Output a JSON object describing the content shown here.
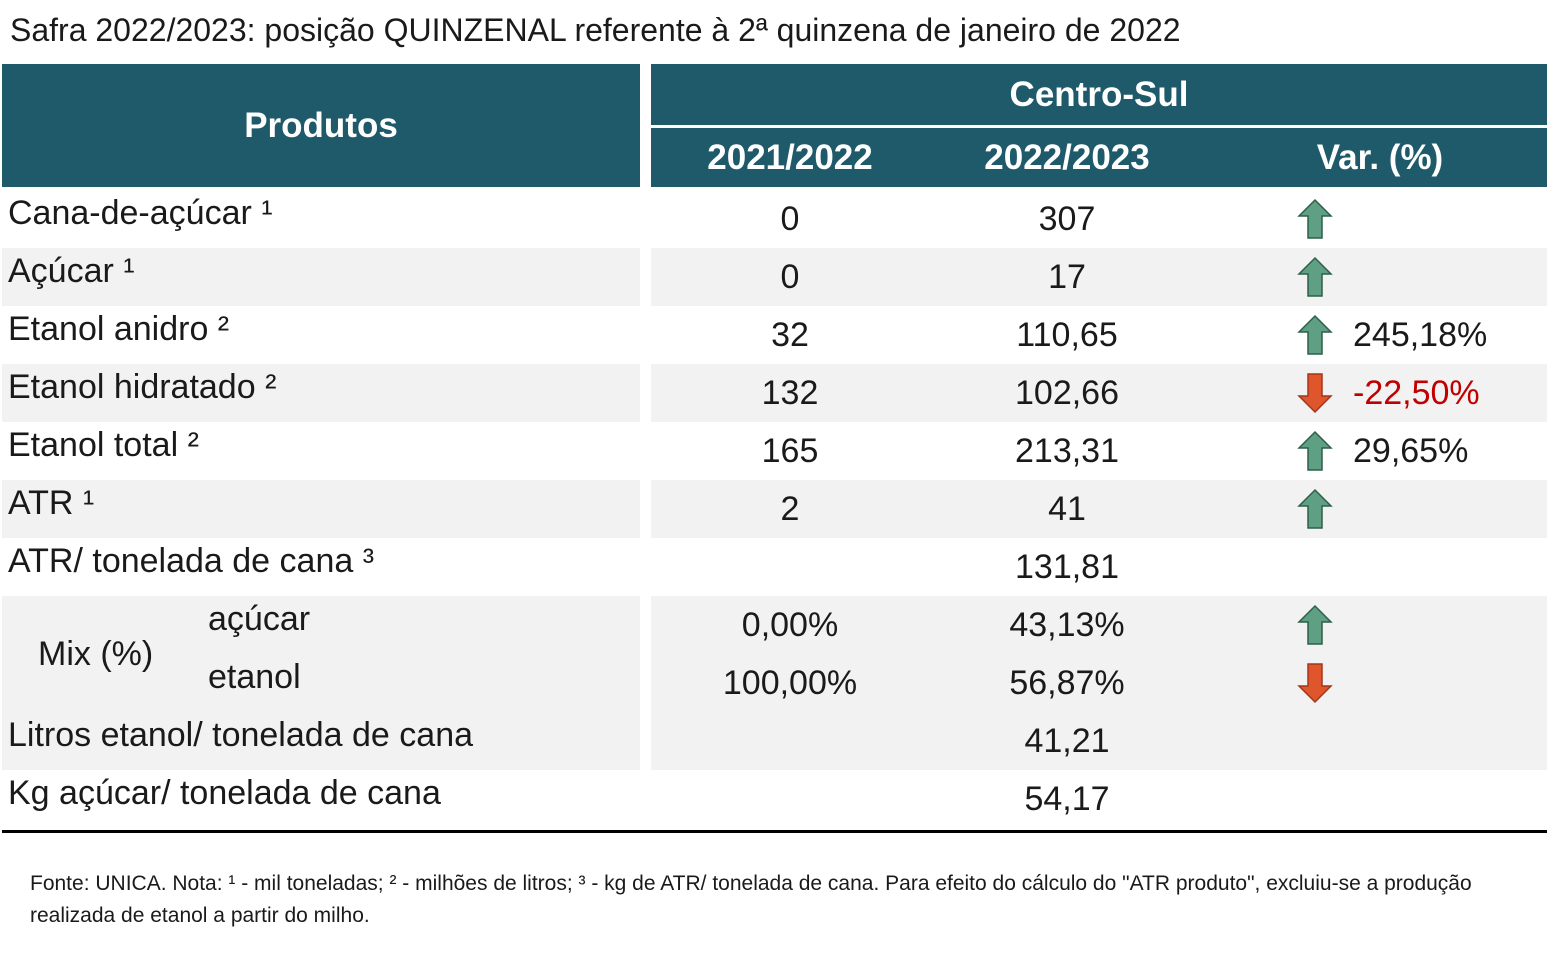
{
  "title": "Safra 2022/2023: posição QUINZENAL referente à 2ª quinzena de janeiro de 2022",
  "header": {
    "products": "Produtos",
    "region": "Centro-Sul",
    "columns": [
      "2021/2022",
      "2022/2023",
      "Var. (%)"
    ]
  },
  "rows": [
    {
      "name": "Cana-de-açúcar ¹",
      "c1": "0",
      "c2": "307",
      "arrow": "up",
      "var": null
    },
    {
      "name": "Açúcar ¹",
      "c1": "0",
      "c2": "17",
      "arrow": "up",
      "var": null
    },
    {
      "name": "Etanol anidro ²",
      "c1": "32",
      "c2": "110,65",
      "arrow": "up",
      "var": "245,18%"
    },
    {
      "name": "Etanol hidratado ²",
      "c1": "132",
      "c2": "102,66",
      "arrow": "down",
      "var": "-22,50%"
    },
    {
      "name": "Etanol total ²",
      "c1": "165",
      "c2": "213,31",
      "arrow": "up",
      "var": "29,65%"
    },
    {
      "name": "ATR ¹",
      "c1": "2",
      "c2": "41",
      "arrow": "up",
      "var": null
    },
    {
      "name": "ATR/ tonelada de cana ³",
      "c1": null,
      "c2": "131,81",
      "arrow": null,
      "var": null
    }
  ],
  "mix": {
    "label": "Mix (%)",
    "rows": [
      {
        "name": "açúcar",
        "c1": "0,00%",
        "c2": "43,13%",
        "arrow": "up"
      },
      {
        "name": "etanol",
        "c1": "100,00%",
        "c2": "56,87%",
        "arrow": "down"
      }
    ]
  },
  "rows_after": [
    {
      "name": "Litros etanol/ tonelada de cana",
      "c1": null,
      "c2": "41,21",
      "arrow": null,
      "var": null
    },
    {
      "name": "Kg açúcar/ tonelada de cana",
      "c1": null,
      "c2": "54,17",
      "arrow": null,
      "var": null
    }
  ],
  "footnote": "Fonte: UNICA. Nota: ¹ - mil toneladas; ² - milhões de litros; ³ - kg de ATR/ tonelada de cana. Para efeito do cálculo do \"ATR produto\", excluiu-se a produção realizada de etanol a partir do milho."
}
